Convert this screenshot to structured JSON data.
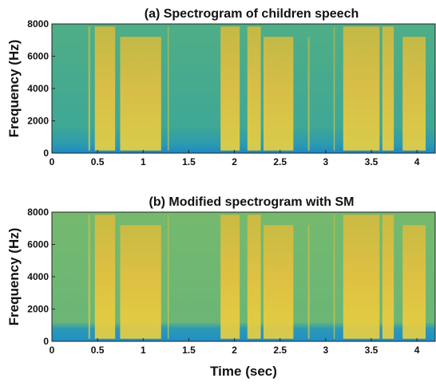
{
  "chart_data": [
    {
      "type": "spectrogram",
      "title": "(a) Spectrogram of children speech",
      "ylabel": "Frequency (Hz)",
      "xlim": [
        0,
        4.2
      ],
      "ylim": [
        0,
        8000
      ],
      "xticks": [
        0,
        0.5,
        1,
        1.5,
        2,
        2.5,
        3,
        3.5,
        4
      ],
      "yticks": [
        0,
        2000,
        4000,
        6000,
        8000
      ]
    },
    {
      "type": "spectrogram",
      "title": "(b) Modified spectrogram with SM",
      "ylabel": "Frequency (Hz)",
      "xlabel": "Time (sec)",
      "xlim": [
        0,
        4.2
      ],
      "ylim": [
        0,
        8000
      ],
      "xticks": [
        0,
        0.5,
        1,
        1.5,
        2,
        2.5,
        3,
        3.5,
        4
      ],
      "yticks": [
        0,
        2000,
        4000,
        6000,
        8000
      ]
    }
  ]
}
